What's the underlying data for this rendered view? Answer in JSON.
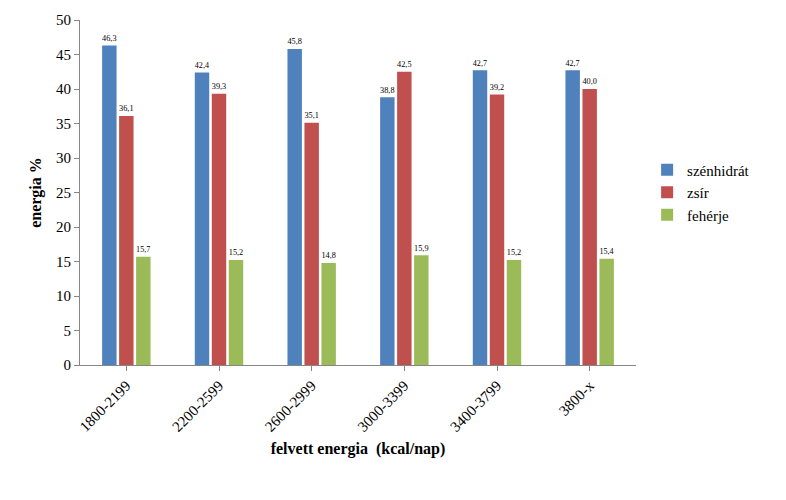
{
  "chart_data": {
    "type": "bar",
    "x_label": "felvett energia  (kcal/nap)",
    "y_label": "energia %",
    "categories": [
      "1800-2199",
      "2200-2599",
      "2600-2999",
      "3000-3399",
      "3400-3799",
      "3800-x"
    ],
    "series": [
      {
        "name": "szénhidrát",
        "color": "#4f81bd",
        "values": [
          46.3,
          42.4,
          45.8,
          38.8,
          42.7,
          42.7
        ],
        "value_labels": [
          "46,3",
          "42,4",
          "45,8",
          "38,8",
          "42,7",
          "42,7"
        ]
      },
      {
        "name": "zsír",
        "color": "#c0504d",
        "values": [
          36.1,
          39.3,
          35.1,
          42.5,
          39.2,
          40.0
        ],
        "value_labels": [
          "36,1",
          "39,3",
          "35,1",
          "42,5",
          "39,2",
          "40,0"
        ]
      },
      {
        "name": "fehérje",
        "color": "#9bbb59",
        "values": [
          15.7,
          15.2,
          14.8,
          15.9,
          15.2,
          15.4
        ],
        "value_labels": [
          "15,7",
          "15,2",
          "14,8",
          "15,9",
          "15,2",
          "15,4"
        ]
      }
    ],
    "ylim": [
      0,
      50
    ],
    "yticks": [
      0,
      5,
      10,
      15,
      20,
      25,
      30,
      35,
      40,
      45,
      50
    ],
    "grid": false,
    "legend": "right",
    "data_labels": true
  }
}
